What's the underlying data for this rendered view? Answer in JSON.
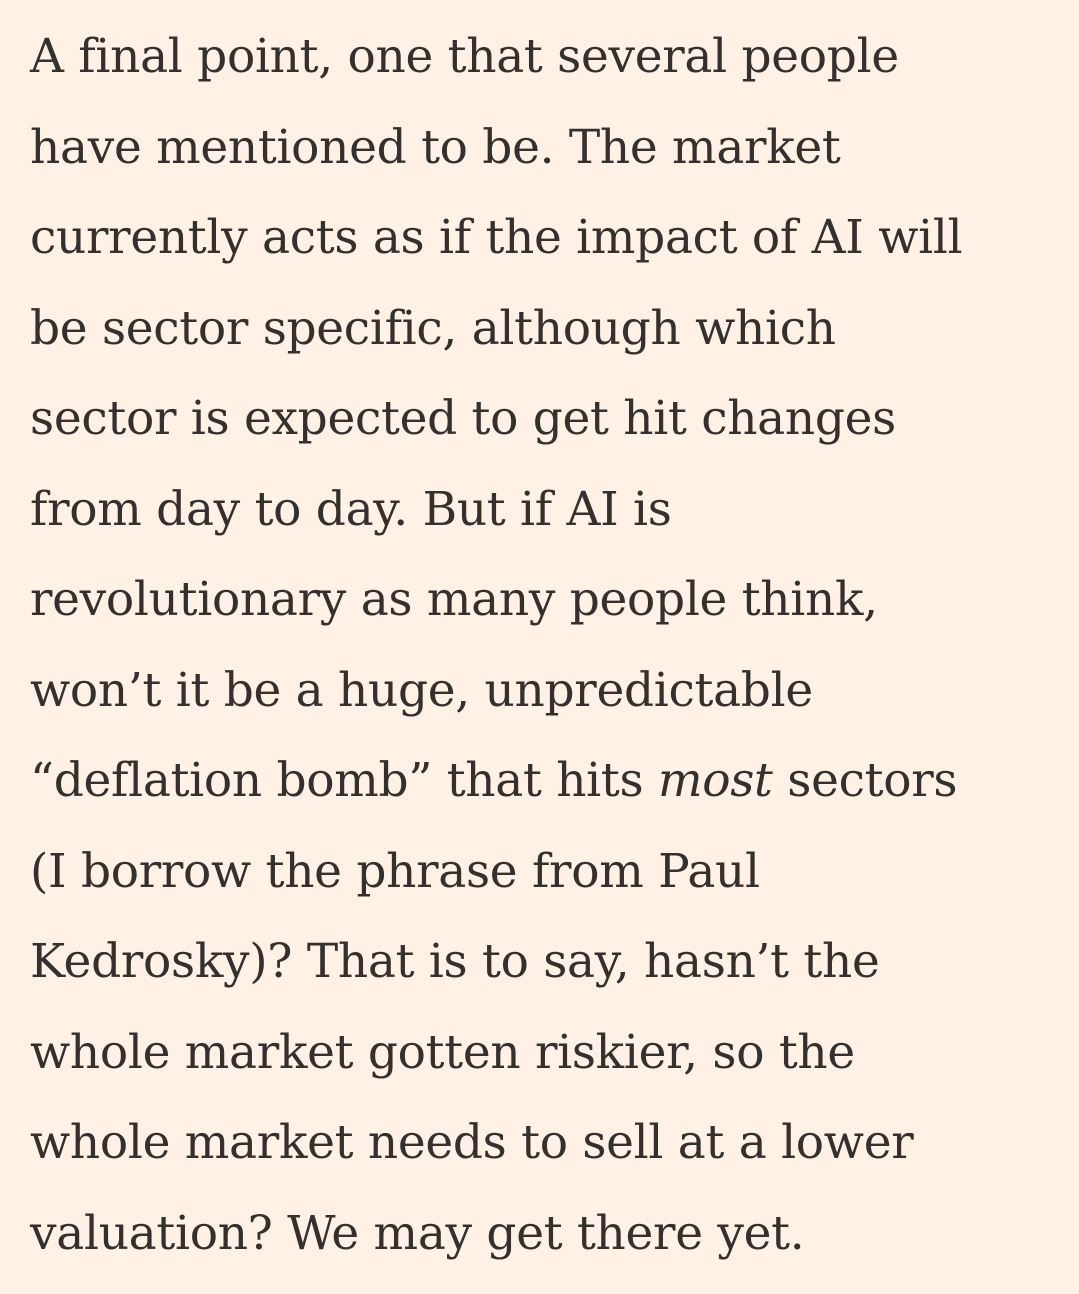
{
  "paragraph": {
    "lines": [
      "A final point, one that several people",
      "have mentioned to be. The market",
      "currently acts as if the impact of AI will",
      "be sector specific, although which",
      "sector is expected to get hit changes",
      "from day to day. But if AI is",
      "revolutionary as many people think,",
      "won’t it be a huge, unpredictable",
      {
        "before": "“deflation bomb” that hits",
        "emphasis": "most",
        "after": "sectors"
      },
      "(I borrow the phrase from Paul",
      "Kedrosky)? That is to say, hasn’t the",
      "whole market gotten riskier, so the",
      "whole market needs to sell at a lower",
      "valuation? We may get there yet."
    ]
  }
}
